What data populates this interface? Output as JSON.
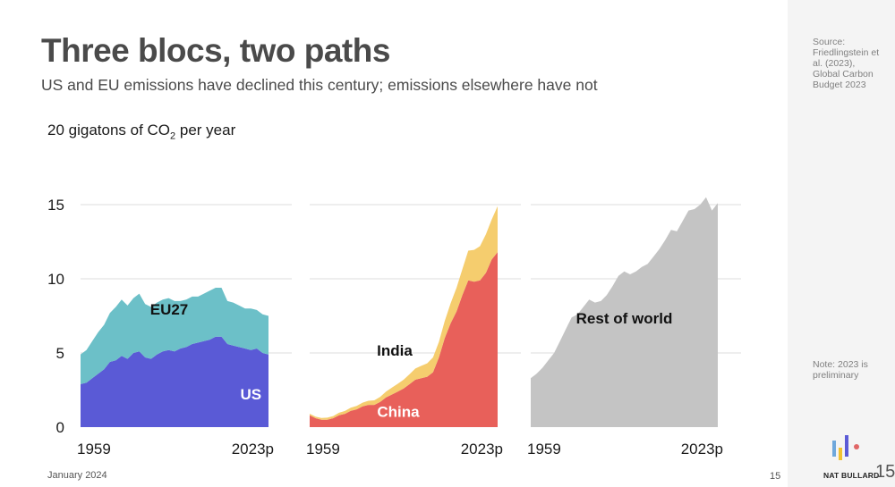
{
  "header": {
    "title": "Three blocs, two paths",
    "subtitle": "US and EU emissions have declined this century; emissions elsewhere have not"
  },
  "unit_label": {
    "pre": "20 gigatons of CO",
    "sub": "2",
    "post": " per year"
  },
  "footer": {
    "date": "January 2024",
    "page": "15"
  },
  "sidebar": {
    "source": "Source: Friedlingstein et al. (2023), Global Carbon Budget 2023",
    "note": "Note: 2023 is preliminary",
    "brand": "NAT BULLARD",
    "page": "15"
  },
  "colors": {
    "us": "#5a5ad6",
    "eu27": "#6cc0c8",
    "china": "#e8605a",
    "india": "#f5cd6e",
    "rest": "#c4c4c4",
    "grid": "#dcdcdc",
    "logo_blue": "#6fa8dc",
    "logo_yellow": "#f1c232",
    "logo_purple": "#5b5bd6",
    "logo_red": "#e06666"
  },
  "chart_data": {
    "type": "area",
    "title": "Three blocs, two paths",
    "ylabel": "gigatons of CO2 per year",
    "ylim": [
      0,
      20
    ],
    "y_ticks": [
      0,
      5,
      10,
      15
    ],
    "x_range_labels": [
      "1959",
      "2023p"
    ],
    "x": [
      1959,
      1961,
      1963,
      1965,
      1967,
      1969,
      1971,
      1973,
      1975,
      1977,
      1979,
      1981,
      1983,
      1985,
      1987,
      1989,
      1991,
      1993,
      1995,
      1997,
      1999,
      2001,
      2003,
      2005,
      2007,
      2009,
      2011,
      2013,
      2015,
      2017,
      2019,
      2021,
      2023
    ],
    "panels": [
      {
        "name": "US and EU27",
        "series": [
          {
            "name": "US",
            "label": "US",
            "values": [
              2.9,
              3.0,
              3.3,
              3.6,
              3.9,
              4.4,
              4.5,
              4.8,
              4.6,
              5.0,
              5.1,
              4.7,
              4.6,
              4.9,
              5.1,
              5.2,
              5.1,
              5.3,
              5.4,
              5.6,
              5.7,
              5.8,
              5.9,
              6.1,
              6.1,
              5.6,
              5.5,
              5.4,
              5.3,
              5.2,
              5.3,
              5.0,
              4.9
            ]
          },
          {
            "name": "EU27",
            "label": "EU27",
            "values": [
              2.0,
              2.2,
              2.5,
              2.8,
              3.0,
              3.3,
              3.6,
              3.8,
              3.6,
              3.7,
              3.9,
              3.6,
              3.5,
              3.5,
              3.5,
              3.5,
              3.4,
              3.2,
              3.2,
              3.2,
              3.1,
              3.2,
              3.3,
              3.3,
              3.3,
              2.9,
              2.9,
              2.8,
              2.7,
              2.8,
              2.6,
              2.6,
              2.6
            ]
          }
        ]
      },
      {
        "name": "China and India",
        "series": [
          {
            "name": "China",
            "label": "China",
            "values": [
              0.8,
              0.6,
              0.5,
              0.5,
              0.6,
              0.8,
              0.9,
              1.1,
              1.2,
              1.4,
              1.5,
              1.5,
              1.7,
              2.0,
              2.2,
              2.4,
              2.6,
              2.9,
              3.2,
              3.3,
              3.4,
              3.7,
              4.7,
              6.0,
              7.0,
              7.8,
              8.9,
              9.9,
              9.8,
              9.9,
              10.4,
              11.3,
              11.8
            ]
          },
          {
            "name": "India",
            "label": "India",
            "values": [
              0.1,
              0.11,
              0.12,
              0.14,
              0.15,
              0.17,
              0.19,
              0.21,
              0.23,
              0.25,
              0.28,
              0.31,
              0.34,
              0.4,
              0.46,
              0.52,
              0.6,
              0.67,
              0.75,
              0.83,
              0.9,
              1.0,
              1.05,
              1.15,
              1.35,
              1.6,
              1.75,
              2.0,
              2.15,
              2.3,
              2.6,
              2.7,
              3.1
            ]
          }
        ]
      },
      {
        "name": "Rest of world",
        "series": [
          {
            "name": "Rest of world",
            "label": "Rest of world",
            "values": [
              3.3,
              3.6,
              4.0,
              4.5,
              5.0,
              5.8,
              6.6,
              7.4,
              7.6,
              8.1,
              8.6,
              8.4,
              8.5,
              8.9,
              9.5,
              10.2,
              10.5,
              10.3,
              10.5,
              10.8,
              11.0,
              11.5,
              12.0,
              12.6,
              13.3,
              13.2,
              13.9,
              14.6,
              14.7,
              15.0,
              15.5,
              14.6,
              15.1
            ]
          }
        ]
      }
    ]
  }
}
